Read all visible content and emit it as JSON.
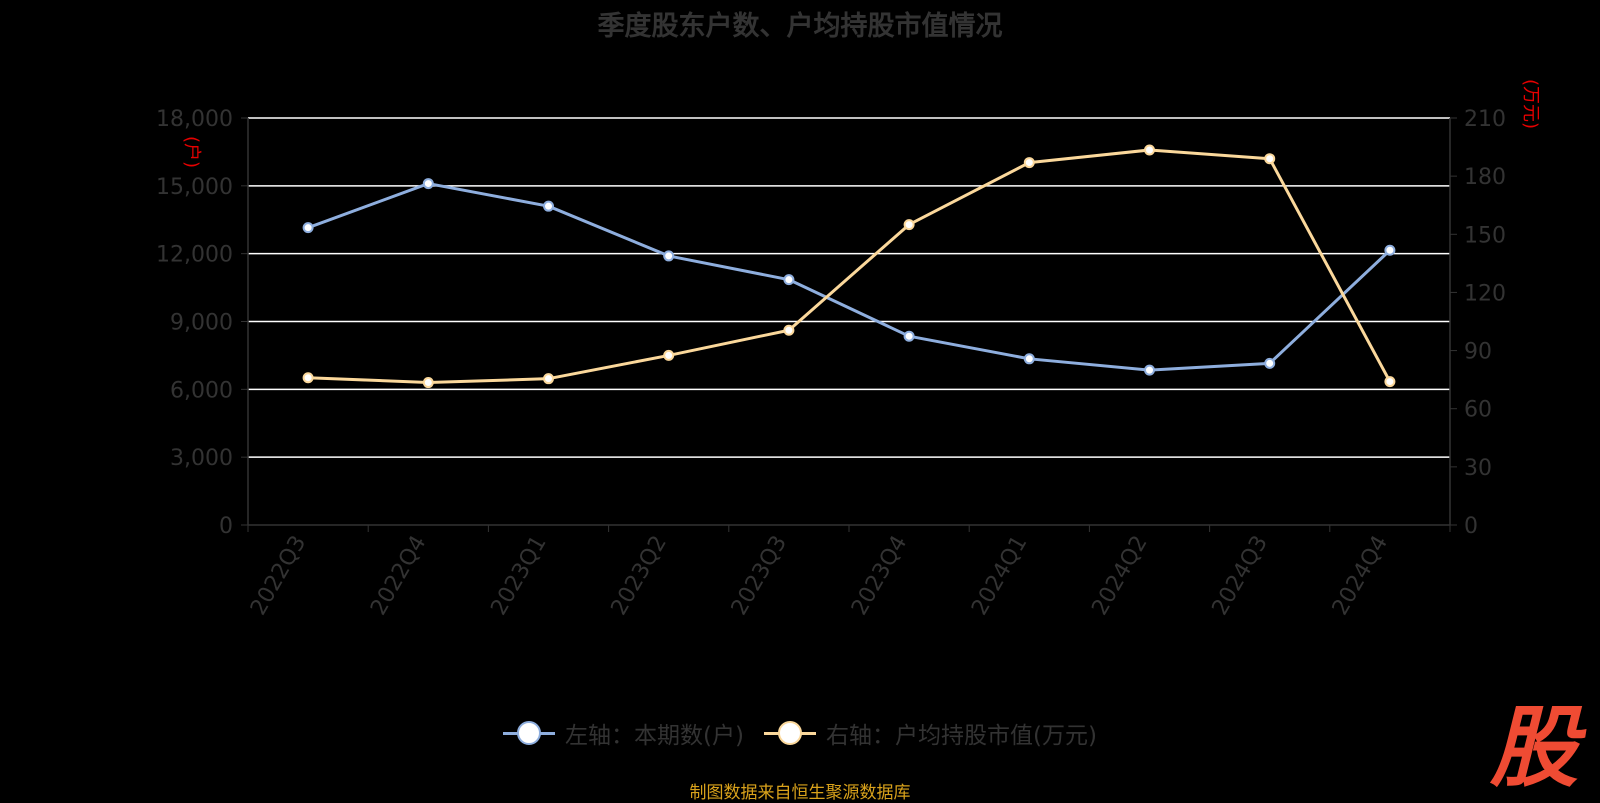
{
  "chart_data": {
    "type": "line",
    "title": "季度股东户数、户均持股市值情况",
    "categories": [
      "2022Q3",
      "2022Q4",
      "2023Q1",
      "2023Q2",
      "2023Q3",
      "2023Q4",
      "2024Q1",
      "2024Q2",
      "2024Q3",
      "2024Q4"
    ],
    "y_left": {
      "unit": "户",
      "ticks": [
        "0",
        "3,000",
        "6,000",
        "9,000",
        "12,000",
        "15,000",
        "18,000"
      ],
      "ylim": [
        0,
        18000
      ]
    },
    "y_right": {
      "unit": "万元",
      "ticks": [
        "0",
        "30",
        "60",
        "90",
        "120",
        "150",
        "180",
        "210"
      ],
      "ylim": [
        0,
        210
      ]
    },
    "series": [
      {
        "name": "左轴：本期数(户)",
        "axis": "left",
        "color": "#8eaede",
        "values": [
          13150,
          15100,
          14100,
          11900,
          10850,
          8350,
          7350,
          6850,
          7150,
          12150
        ]
      },
      {
        "name": "右轴：户均持股市值(万元)",
        "axis": "right",
        "color": "#fbd89b",
        "values": [
          76,
          73.5,
          75.5,
          87.5,
          100.5,
          155,
          187,
          193.5,
          189,
          74
        ]
      }
    ],
    "grid": true,
    "legend": "bottom"
  },
  "source_note": "制图数据来自恒生聚源数据库",
  "watermark": "股"
}
